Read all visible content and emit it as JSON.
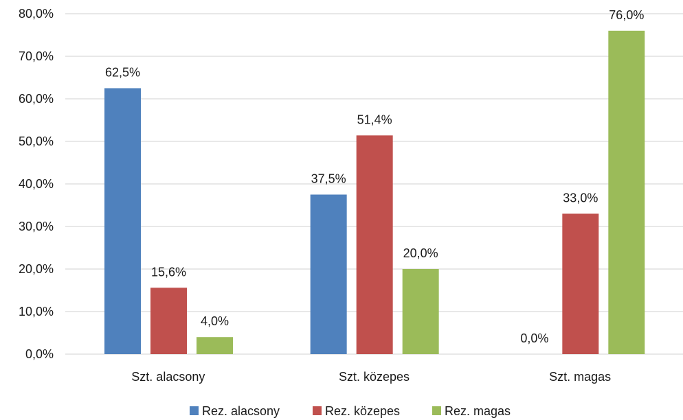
{
  "chart_data": {
    "type": "bar",
    "categories": [
      "Szt. alacsony",
      "Szt. közepes",
      "Szt. magas"
    ],
    "series": [
      {
        "name": "Rez. alacsony",
        "color": "#4F81BD",
        "values": [
          62.5,
          37.5,
          0.0
        ],
        "labels": [
          "62,5%",
          "37,5%",
          "0,0%"
        ]
      },
      {
        "name": "Rez. közepes",
        "color": "#C0504D",
        "values": [
          15.6,
          51.4,
          33.0
        ],
        "labels": [
          "15,6%",
          "51,4%",
          "33,0%"
        ]
      },
      {
        "name": "Rez. magas",
        "color": "#9BBB59",
        "values": [
          4.0,
          20.0,
          76.0
        ],
        "labels": [
          "4,0%",
          "20,0%",
          "76,0%"
        ]
      }
    ],
    "ylim": [
      0,
      80
    ],
    "yticks": [
      0,
      10,
      20,
      30,
      40,
      50,
      60,
      70,
      80
    ],
    "ytick_labels": [
      "0,0%",
      "10,0%",
      "20,0%",
      "30,0%",
      "40,0%",
      "50,0%",
      "60,0%",
      "70,0%",
      "80,0%"
    ],
    "grid": true,
    "gridline_color": "#D9D9D9",
    "legend_position": "bottom"
  }
}
